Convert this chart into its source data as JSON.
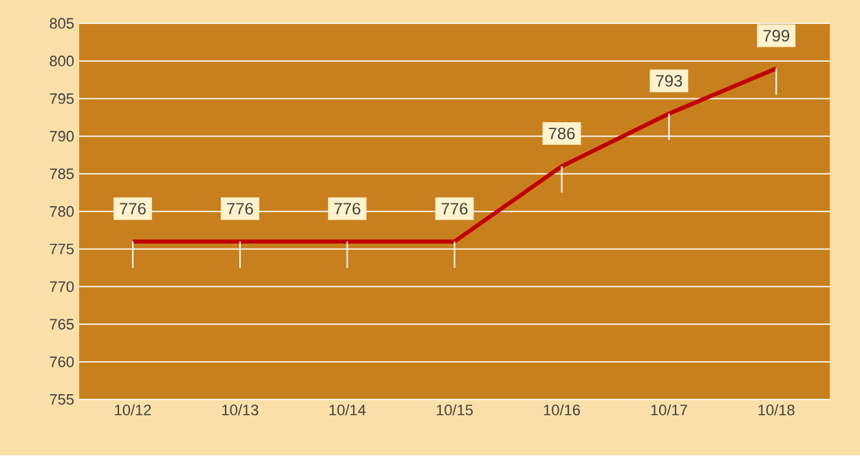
{
  "chart_data": {
    "type": "line",
    "categories": [
      "10/12",
      "10/13",
      "10/14",
      "10/15",
      "10/16",
      "10/17",
      "10/18"
    ],
    "values": [
      776,
      776,
      776,
      776,
      786,
      793,
      799
    ],
    "errors": [
      [
        772.5,
        776
      ],
      [
        772.5,
        776
      ],
      [
        772.5,
        776
      ],
      [
        772.5,
        776
      ],
      [
        782.5,
        786
      ],
      [
        789.5,
        793
      ],
      [
        795.5,
        799
      ]
    ],
    "color": "#c00000",
    "ylim": [
      755,
      805
    ],
    "yticks": [
      755,
      760,
      765,
      770,
      775,
      780,
      785,
      790,
      795,
      800,
      805
    ],
    "grid": "y",
    "data_labels": true,
    "marker": "none",
    "line_style": "solid"
  }
}
